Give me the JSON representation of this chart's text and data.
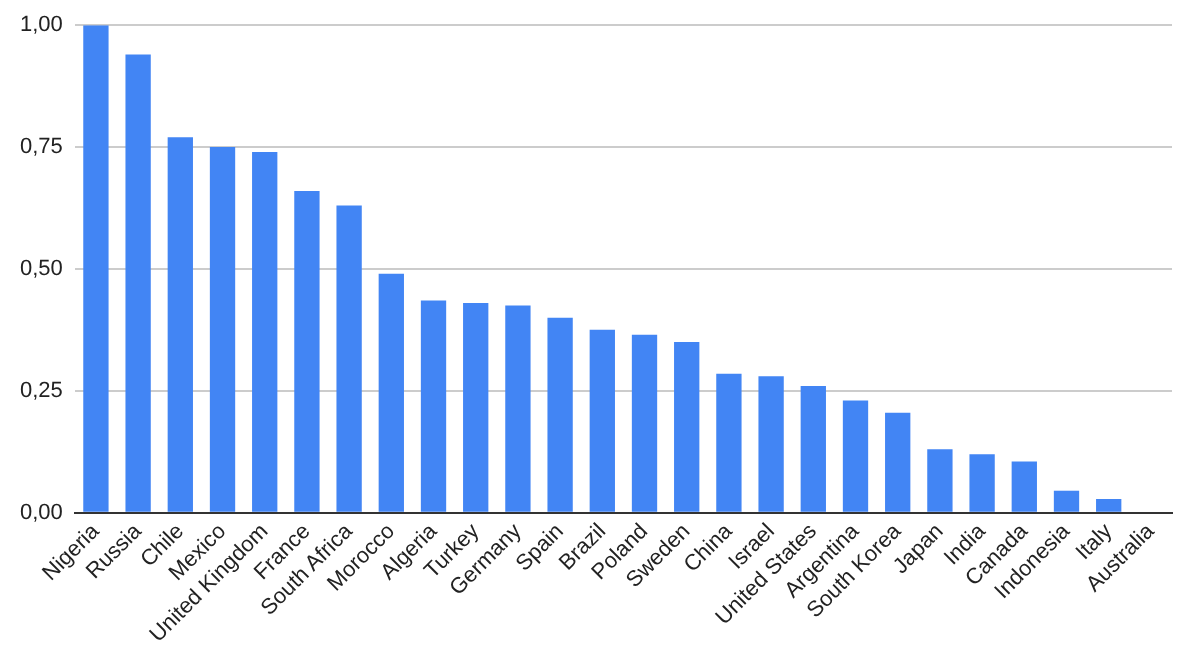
{
  "chart_data": {
    "type": "bar",
    "categories": [
      "Nigeria",
      "Russia",
      "Chile",
      "Mexico",
      "United Kingdom",
      "France",
      "South Africa",
      "Morocco",
      "Algeria",
      "Turkey",
      "Germany",
      "Spain",
      "Brazil",
      "Poland",
      "Sweden",
      "China",
      "Israel",
      "United States",
      "Argentina",
      "South Korea",
      "Japan",
      "India",
      "Canada",
      "Indonesia",
      "Italy",
      "Australia"
    ],
    "values": [
      1.0,
      0.94,
      0.77,
      0.75,
      0.74,
      0.66,
      0.63,
      0.49,
      0.435,
      0.43,
      0.425,
      0.4,
      0.375,
      0.365,
      0.35,
      0.285,
      0.28,
      0.26,
      0.23,
      0.205,
      0.13,
      0.12,
      0.105,
      0.045,
      0.028,
      0
    ],
    "color": "#4285f4",
    "ylim": [
      0,
      1
    ],
    "yticks": [
      {
        "value": 0,
        "label": "0,00"
      },
      {
        "value": 0.25,
        "label": "0,25"
      },
      {
        "value": 0.5,
        "label": "0,50"
      },
      {
        "value": 0.75,
        "label": "0,75"
      },
      {
        "value": 1,
        "label": "1,00"
      }
    ],
    "grid": "y"
  }
}
